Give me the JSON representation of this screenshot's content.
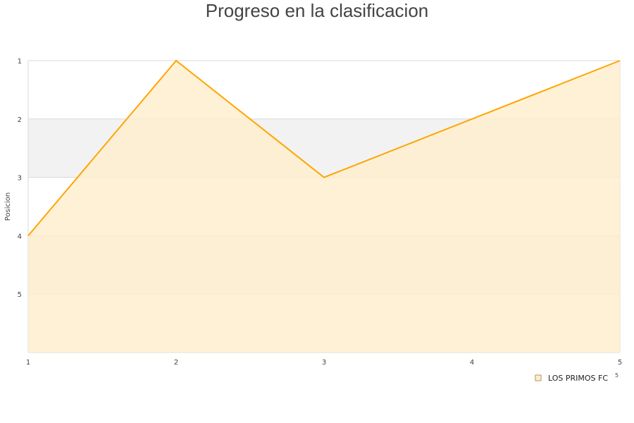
{
  "chart_data": {
    "type": "area",
    "title": "Progreso en la clasificacion",
    "xlabel": "",
    "ylabel": "Posicion",
    "x": [
      1,
      2,
      3,
      4,
      5
    ],
    "series": [
      {
        "name": "LOS PRIMOS FC",
        "values": [
          4,
          1,
          3,
          2,
          1
        ]
      }
    ],
    "xlim": [
      1,
      5
    ],
    "ylim": [
      1,
      6
    ],
    "y_inverted": true,
    "x_ticks": [
      "1",
      "2",
      "3",
      "4",
      "5"
    ],
    "y_ticks": [
      "1",
      "2",
      "3",
      "4",
      "5"
    ],
    "grid": true,
    "alternating_bands": true,
    "legend_position": "bottom-right",
    "legend_note": "5",
    "colors": {
      "line": "#ffa500",
      "fill": "#ffeecc",
      "band": "#f2f2f2",
      "axis": "#d9d9d9"
    }
  }
}
